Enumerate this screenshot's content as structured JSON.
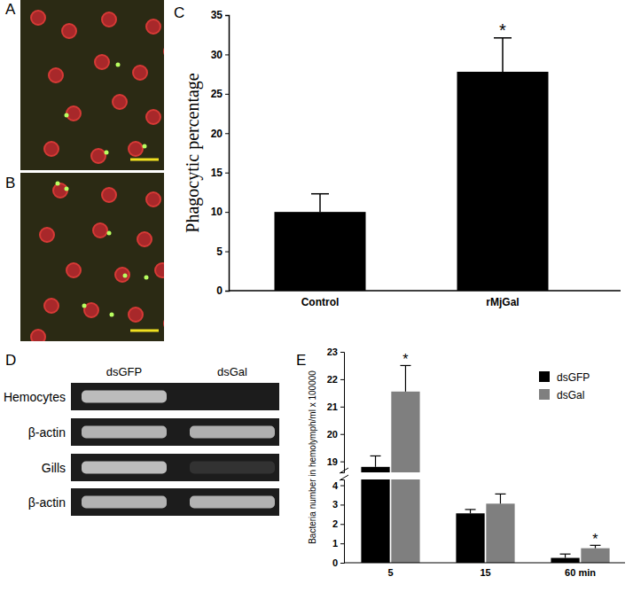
{
  "chart_data": [
    {
      "type": "bar",
      "y_label": "Phagocytic percentage",
      "categories": [
        "Control",
        "rMjGal"
      ],
      "values": [
        10,
        27.8
      ],
      "errors": [
        2.3,
        4.3
      ],
      "color": "#000000",
      "ylim": [
        0,
        35
      ],
      "yticks": [
        0,
        5,
        10,
        15,
        20,
        25,
        30,
        35
      ],
      "annotations": [
        {
          "text": "*",
          "x": 1
        }
      ]
    },
    {
      "type": "bar",
      "y_label": "Bacteria number in hemolymph/ml x 100000",
      "categories": [
        "5",
        "15",
        "60 min"
      ],
      "series": [
        {
          "name": "dsGFP",
          "color": "#000000",
          "values": [
            18.8,
            2.55,
            0.25
          ],
          "errors": [
            0.4,
            0.2,
            0.2
          ]
        },
        {
          "name": "dsGal",
          "color": "#7f7f7f",
          "values": [
            21.55,
            3.05,
            0.75
          ],
          "errors": [
            0.95,
            0.5,
            0.15
          ]
        }
      ],
      "ylim": [
        0,
        23
      ],
      "y_break": [
        4.3,
        18.6
      ],
      "yticks": [
        0,
        1,
        2,
        3,
        4,
        19,
        20,
        21,
        22,
        23
      ],
      "legend": "upper right",
      "annotations": [
        {
          "text": "*",
          "x": 0,
          "series": 1
        },
        {
          "text": "*",
          "x": 2,
          "series": 1
        }
      ]
    }
  ],
  "figure": {
    "panel_labels": [
      "A",
      "B",
      "C",
      "D",
      "E"
    ],
    "gel": {
      "columns": [
        "dsGFP",
        "dsGal"
      ],
      "rows": [
        "Hemocytes",
        "β-actin",
        "Gills",
        "β-actin"
      ]
    }
  }
}
